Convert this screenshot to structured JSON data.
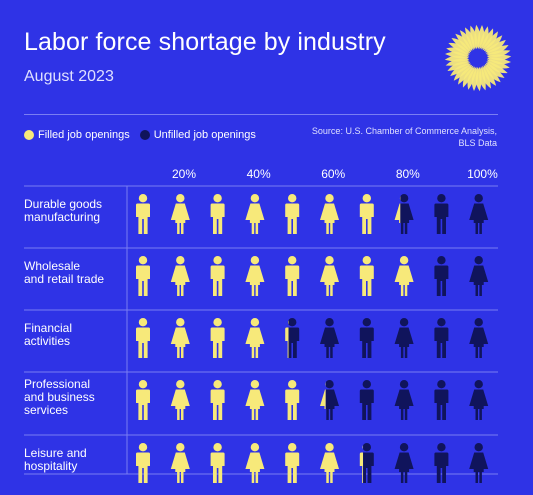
{
  "header": {
    "title": "Labor force shortage by industry",
    "subtitle": "August 2023"
  },
  "legend": {
    "filled_label": "Filled job openings",
    "unfilled_label": "Unfilled job openings"
  },
  "source": {
    "line1": "Source: U.S. Chamber of Commerce Analysis,",
    "line2": "BLS Data"
  },
  "colors": {
    "background": "#2f33e6",
    "filled": "#f7e97a",
    "unfilled": "#10145c",
    "rule": "#7a7ef2"
  },
  "icons": {
    "figure_male": "person-male-icon",
    "figure_female": "person-female-icon",
    "logo": "sunburst-logo-icon"
  },
  "chart_data": {
    "type": "pictogram",
    "title": "Labor force shortage by industry",
    "subtitle": "August 2023",
    "ticks": [
      "20%",
      "40%",
      "60%",
      "80%",
      "100%"
    ],
    "figures_per_row": 10,
    "figure_pattern": [
      "male",
      "female",
      "male",
      "female",
      "male",
      "female",
      "male",
      "female",
      "male",
      "female"
    ],
    "categories": [
      {
        "label_lines": [
          "Durable goods",
          "manufacturing"
        ],
        "filled_pct": 74
      },
      {
        "label_lines": [
          "Wholesale",
          "and retail trade"
        ],
        "filled_pct": 80
      },
      {
        "label_lines": [
          "Financial",
          "activities"
        ],
        "filled_pct": 44
      },
      {
        "label_lines": [
          "Professional",
          "and business",
          "services"
        ],
        "filled_pct": 54
      },
      {
        "label_lines": [
          "Leisure and",
          "hospitality"
        ],
        "filled_pct": 64
      }
    ],
    "series": [
      {
        "name": "Filled job openings"
      },
      {
        "name": "Unfilled job openings"
      }
    ]
  }
}
